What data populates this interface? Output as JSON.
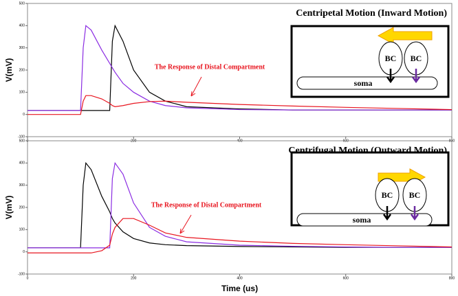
{
  "chart_data": [
    {
      "type": "line",
      "title": "Centripetal Motion (Inward Motion)",
      "y_label": "V(mV)",
      "annotation": "The Response of Distal Compartment",
      "inset_labels": [
        "BC",
        "BC",
        "soma"
      ],
      "x": [
        0,
        100,
        105,
        110,
        120,
        140,
        155,
        160,
        165,
        180,
        200,
        230,
        260,
        300,
        400,
        500,
        600,
        700,
        800
      ],
      "series": [
        {
          "color": "#000000",
          "values": [
            18,
            18,
            18,
            18,
            18,
            18,
            18,
            330,
            400,
            330,
            200,
            100,
            60,
            35,
            25,
            20,
            20,
            20,
            20
          ]
        },
        {
          "color": "#8a2be2",
          "values": [
            18,
            18,
            300,
            400,
            380,
            290,
            230,
            210,
            190,
            140,
            100,
            60,
            40,
            30,
            22,
            20,
            20,
            20,
            20
          ]
        },
        {
          "color": "#e8141e",
          "values": [
            0,
            0,
            60,
            85,
            85,
            70,
            50,
            40,
            35,
            40,
            50,
            58,
            60,
            55,
            45,
            38,
            32,
            27,
            22
          ]
        }
      ],
      "xlim": [
        0,
        800
      ],
      "xticks": [
        0,
        200,
        400,
        600,
        800
      ],
      "ylim": [
        -100,
        500
      ],
      "yticks": [
        -100,
        0,
        100,
        200,
        300,
        400,
        500
      ]
    },
    {
      "type": "line",
      "title": "Centrifugal Motion (Outward Motion)",
      "y_label": "V(mV)",
      "x_label": "Time (us)",
      "annotation": "The Response of Distal Compartment",
      "inset_labels": [
        "BC",
        "BC",
        "soma"
      ],
      "x": [
        0,
        100,
        105,
        110,
        120,
        140,
        155,
        160,
        165,
        180,
        200,
        230,
        260,
        300,
        400,
        500,
        600,
        700,
        800
      ],
      "series": [
        {
          "color": "#000000",
          "values": [
            18,
            18,
            300,
            400,
            370,
            250,
            180,
            150,
            130,
            90,
            60,
            40,
            32,
            28,
            24,
            22,
            20,
            20,
            20
          ]
        },
        {
          "color": "#8a2be2",
          "values": [
            18,
            18,
            18,
            18,
            18,
            18,
            18,
            330,
            400,
            350,
            220,
            110,
            70,
            45,
            30,
            25,
            22,
            20,
            20
          ]
        },
        {
          "color": "#e8141e",
          "values": [
            -5,
            -5,
            -5,
            -5,
            -5,
            5,
            30,
            80,
            110,
            150,
            150,
            120,
            85,
            65,
            48,
            38,
            32,
            27,
            22
          ]
        }
      ],
      "xlim": [
        0,
        800
      ],
      "xticks": [
        0,
        200,
        400,
        600,
        800
      ],
      "ylim": [
        -100,
        500
      ],
      "yticks": [
        -100,
        0,
        100,
        200,
        300,
        400,
        500
      ]
    }
  ]
}
